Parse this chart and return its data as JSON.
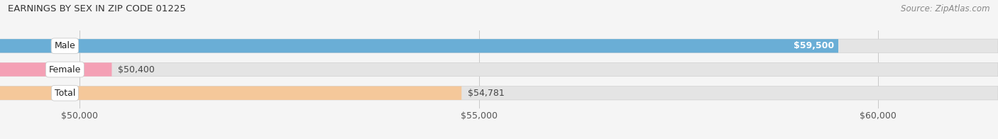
{
  "title": "EARNINGS BY SEX IN ZIP CODE 01225",
  "source": "Source: ZipAtlas.com",
  "categories": [
    "Male",
    "Female",
    "Total"
  ],
  "values": [
    59500,
    50400,
    54781
  ],
  "bar_colors": [
    "#6aaed6",
    "#f4a0b5",
    "#f5c89a"
  ],
  "bar_bg_color": "#e4e4e4",
  "x_min": 49000,
  "x_max": 61500,
  "x_ticks": [
    50000,
    55000,
    60000
  ],
  "x_tick_labels": [
    "$50,000",
    "$55,000",
    "$60,000"
  ],
  "value_labels": [
    "$59,500",
    "$50,400",
    "$54,781"
  ],
  "value_inside": [
    true,
    false,
    false
  ],
  "title_fontsize": 9.5,
  "source_fontsize": 8.5,
  "label_fontsize": 9,
  "value_fontsize": 9,
  "bg_color": "#f5f5f5"
}
